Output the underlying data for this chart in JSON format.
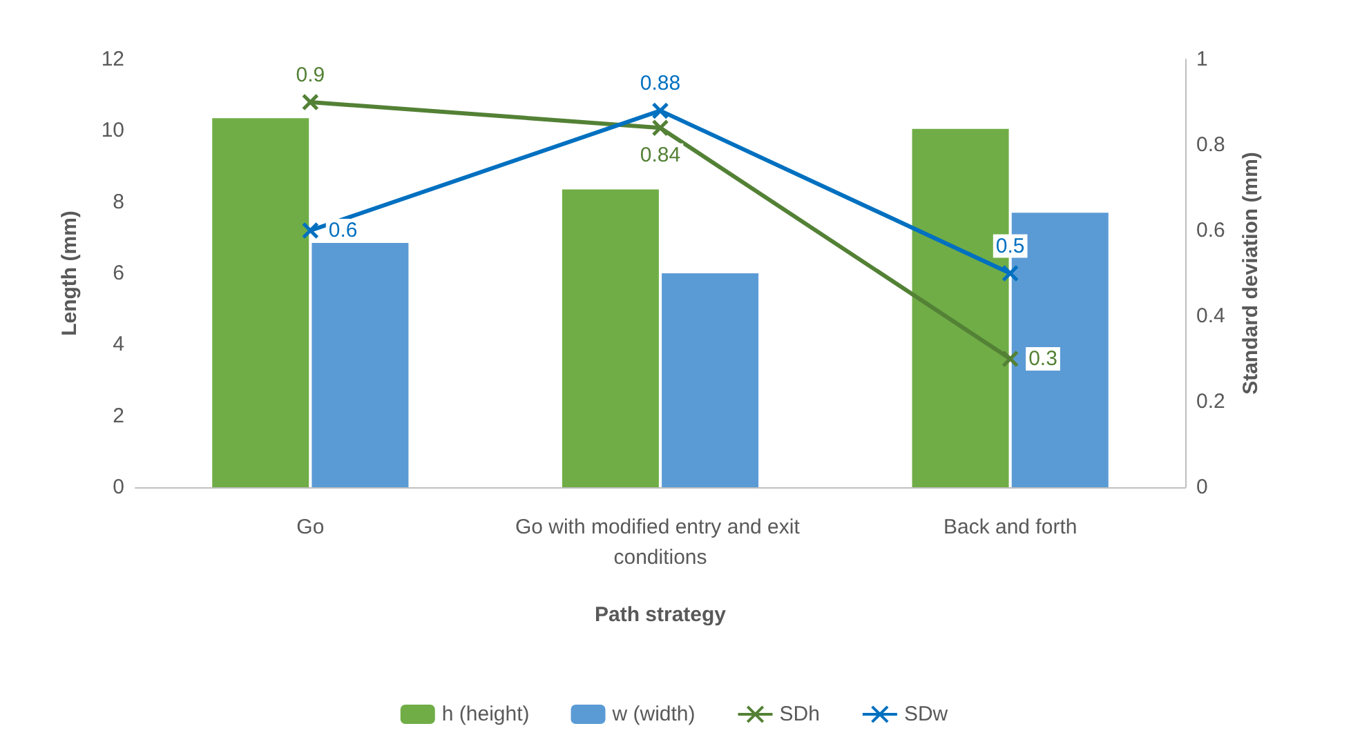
{
  "chart_data": {
    "type": "bar",
    "xlabel": "Path strategy",
    "ylabel": "Length (mm)",
    "y2label": "Standard deviation (mm)",
    "categories": [
      "Go",
      "Go with modified entry and exit conditions",
      "Back and forth"
    ],
    "series": [
      {
        "name": "h (height)",
        "color": "#70ad47",
        "values": [
          10.35,
          8.35,
          10.05
        ]
      },
      {
        "name": "w (width)",
        "color": "#5b9bd5",
        "values": [
          6.85,
          6.0,
          7.7
        ]
      },
      {
        "name": "SDh",
        "type": "line",
        "axis": "y2",
        "color": "#538135",
        "marker": "cross",
        "values": [
          0.9,
          0.84,
          0.3
        ],
        "value_labels": [
          "0.9",
          "0.84",
          "0.3"
        ]
      },
      {
        "name": "SDw",
        "type": "line",
        "axis": "y2",
        "color": "#0070c0",
        "marker": "cross",
        "values": [
          0.6,
          0.88,
          0.5
        ],
        "value_labels": [
          "0.6",
          "0.88",
          "0.5"
        ]
      }
    ],
    "ylim": [
      0,
      12
    ],
    "yticks": [
      0,
      2,
      4,
      6,
      8,
      10,
      12
    ],
    "y2lim": [
      0,
      1
    ],
    "y2ticks": [
      0,
      0.2,
      0.4,
      0.6,
      0.8,
      1
    ],
    "grid": false,
    "legend": "bottom"
  }
}
